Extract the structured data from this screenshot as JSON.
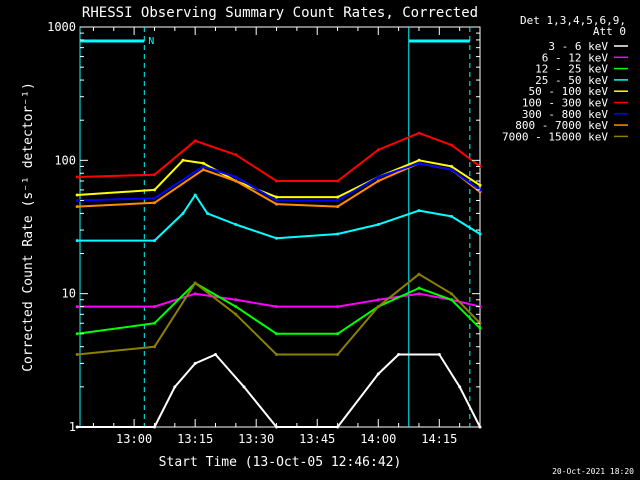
{
  "chart_data": {
    "type": "line",
    "title": "RHESSI Observing Summary Count Rates, Corrected",
    "xlabel": "Start Time (13-Oct-05 12:46:42)",
    "ylabel": "Corrected Count Rate (s⁻¹ detector⁻¹)",
    "y_scale": "log",
    "ylim": [
      1,
      1000
    ],
    "xlim": [
      "12:46:42",
      "14:25:00"
    ],
    "y_ticks": [
      "1",
      "10",
      "100",
      "1000"
    ],
    "x_ticks": [
      "13:00",
      "13:15",
      "13:30",
      "13:45",
      "14:00",
      "14:15"
    ],
    "legend_header": [
      "Det 1,3,4,5,6,9,",
      "Att 0"
    ],
    "legend_position": "right, outside plot",
    "series": [
      {
        "name": "3 - 6 keV",
        "color": "#ffffff"
      },
      {
        "name": "6 - 12 keV",
        "color": "#ff00ff"
      },
      {
        "name": "12 - 25 keV",
        "color": "#00ff00"
      },
      {
        "name": "25 - 50 keV",
        "color": "#00ffff"
      },
      {
        "name": "50 - 100 keV",
        "color": "#ffff00"
      },
      {
        "name": "100 - 300 keV",
        "color": "#ff0000"
      },
      {
        "name": "300 - 800 keV",
        "color": "#0000ff"
      },
      {
        "name": "800 - 7000 keV",
        "color": "#ff8c00"
      },
      {
        "name": "7000 - 15000 keV",
        "color": "#8b8000"
      }
    ],
    "plot_series": [
      {
        "label": "100 - 300 keV",
        "color": "#ff0000",
        "x": [
          "12:46",
          "13:05",
          "13:15",
          "13:25",
          "13:35",
          "13:50",
          "14:00",
          "14:10",
          "14:18",
          "14:25"
        ],
        "values": [
          75,
          78,
          140,
          110,
          70,
          70,
          120,
          160,
          130,
          90
        ]
      },
      {
        "label": "50 - 100 keV",
        "color": "#ffff00",
        "x": [
          "12:46",
          "13:05",
          "13:12",
          "13:17",
          "13:25",
          "13:35",
          "13:50",
          "14:00",
          "14:10",
          "14:18",
          "14:25"
        ],
        "values": [
          55,
          60,
          100,
          95,
          70,
          53,
          53,
          75,
          100,
          90,
          65
        ]
      },
      {
        "label": "800 - 7000 keV",
        "color": "#ff8c00",
        "x": [
          "12:46",
          "13:05",
          "13:17",
          "13:25",
          "13:35",
          "13:50",
          "14:00",
          "14:10",
          "14:18",
          "14:25"
        ],
        "values": [
          45,
          48,
          85,
          70,
          47,
          45,
          70,
          95,
          85,
          58
        ]
      },
      {
        "label": "300 - 800 keV",
        "color": "#0000ff",
        "x": [
          "12:46",
          "13:05",
          "13:17",
          "13:25",
          "13:35",
          "13:50",
          "14:00",
          "14:10",
          "14:18",
          "14:25"
        ],
        "values": [
          50,
          52,
          90,
          75,
          50,
          50,
          75,
          95,
          85,
          60
        ]
      },
      {
        "label": "25 - 50 keV",
        "color": "#00ffff",
        "x": [
          "12:46",
          "13:05",
          "13:12",
          "13:15",
          "13:18",
          "13:25",
          "13:35",
          "13:50",
          "14:00",
          "14:10",
          "14:18",
          "14:25"
        ],
        "values": [
          25,
          25,
          40,
          55,
          40,
          33,
          26,
          28,
          33,
          42,
          38,
          28
        ]
      },
      {
        "label": "6 - 12 keV",
        "color": "#ff00ff",
        "x": [
          "12:46",
          "13:05",
          "13:15",
          "13:25",
          "13:35",
          "13:50",
          "14:00",
          "14:10",
          "14:18",
          "14:25"
        ],
        "values": [
          8,
          8,
          10,
          9,
          8,
          8,
          9,
          10,
          9,
          8
        ]
      },
      {
        "label": "12 - 25 keV",
        "color": "#00ff00",
        "x": [
          "12:46",
          "13:05",
          "13:15",
          "13:25",
          "13:35",
          "13:50",
          "14:00",
          "14:10",
          "14:18",
          "14:25"
        ],
        "values": [
          5,
          6,
          12,
          8,
          5,
          5,
          8,
          11,
          9,
          5.5
        ]
      },
      {
        "label": "7000 - 15000 keV",
        "color": "#8b8000",
        "x": [
          "12:46",
          "13:05",
          "13:15",
          "13:25",
          "13:35",
          "13:50",
          "14:00",
          "14:10",
          "14:18",
          "14:25"
        ],
        "values": [
          3.5,
          4,
          12,
          7,
          3.5,
          3.5,
          8,
          14,
          10,
          6
        ]
      },
      {
        "label": "3 - 6 keV",
        "color": "#ffffff",
        "x": [
          "12:46",
          "13:05",
          "13:10",
          "13:15",
          "13:20",
          "13:27",
          "13:35",
          "13:50",
          "14:00",
          "14:05",
          "14:15",
          "14:20",
          "14:25"
        ],
        "values": [
          0.9,
          1,
          2,
          3,
          3.5,
          2,
          0.9,
          0.9,
          2.5,
          3.5,
          3.5,
          2,
          1
        ]
      }
    ],
    "annotations": [
      {
        "text": "N",
        "color": "#00ffff",
        "description": "night interval marker"
      },
      {
        "text": "20-Oct-2021 18:20",
        "description": "plot creation timestamp"
      }
    ],
    "night_bars": [
      {
        "start": "12:46:42",
        "end": "13:02:30"
      },
      {
        "start": "14:07:30",
        "end": "14:22:30"
      }
    ],
    "grid": false
  }
}
